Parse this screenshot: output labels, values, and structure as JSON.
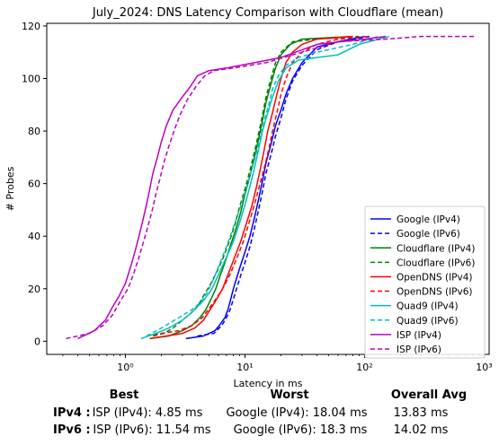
{
  "chart_data": {
    "type": "line",
    "title": "July_2024: DNS Latency Comparison with Cloudflare (mean)",
    "xlabel": "Latency in ms",
    "ylabel": "# Probes",
    "xscale": "log",
    "xlim": [
      0.22,
      1100
    ],
    "ylim": [
      -5,
      121
    ],
    "xticks": [
      1,
      10,
      100,
      1000
    ],
    "xtick_labels": [
      "10⁰",
      "10¹",
      "10²",
      "10³"
    ],
    "yticks": [
      0,
      20,
      40,
      60,
      80,
      100,
      120
    ],
    "grid": false,
    "legend_position": "lower-right",
    "series": [
      {
        "name": "Google (IPv4)",
        "color": "#0000ff",
        "dash": "solid",
        "points": [
          [
            3.2,
            1
          ],
          [
            4.5,
            2
          ],
          [
            5.6,
            4
          ],
          [
            6.1,
            6
          ],
          [
            6.8,
            9
          ],
          [
            7.2,
            12
          ],
          [
            7.6,
            16
          ],
          [
            8.0,
            20
          ],
          [
            8.5,
            24
          ],
          [
            9.2,
            29
          ],
          [
            10,
            34
          ],
          [
            11,
            40
          ],
          [
            12,
            47
          ],
          [
            13,
            54
          ],
          [
            14,
            61
          ],
          [
            15,
            68
          ],
          [
            16.5,
            75
          ],
          [
            18,
            82
          ],
          [
            20,
            88
          ],
          [
            22,
            94
          ],
          [
            25,
            100
          ],
          [
            30,
            106
          ],
          [
            40,
            112
          ],
          [
            60,
            114
          ],
          [
            100,
            116
          ]
        ]
      },
      {
        "name": "Google (IPv6)",
        "color": "#0000ff",
        "dash": "dashed",
        "points": [
          [
            4.0,
            2
          ],
          [
            5.5,
            3
          ],
          [
            6.4,
            6
          ],
          [
            7.0,
            9
          ],
          [
            7.5,
            12
          ],
          [
            8.0,
            16
          ],
          [
            8.5,
            20
          ],
          [
            9.2,
            25
          ],
          [
            10,
            30
          ],
          [
            11,
            36
          ],
          [
            12,
            43
          ],
          [
            13,
            50
          ],
          [
            14,
            57
          ],
          [
            15,
            64
          ],
          [
            16.5,
            71
          ],
          [
            18,
            78
          ],
          [
            20,
            85
          ],
          [
            22,
            92
          ],
          [
            25,
            99
          ],
          [
            30,
            105
          ],
          [
            40,
            111
          ],
          [
            60,
            114
          ],
          [
            110,
            116
          ]
        ]
      },
      {
        "name": "Cloudflare (IPv4)",
        "color": "#008000",
        "dash": "solid",
        "points": [
          [
            1.6,
            1
          ],
          [
            2.3,
            2
          ],
          [
            3.0,
            4
          ],
          [
            3.6,
            6
          ],
          [
            4.2,
            9
          ],
          [
            4.7,
            12
          ],
          [
            5.2,
            16
          ],
          [
            5.7,
            20
          ],
          [
            6.2,
            25
          ],
          [
            6.8,
            30
          ],
          [
            7.5,
            36
          ],
          [
            8.3,
            42
          ],
          [
            9.2,
            49
          ],
          [
            10,
            56
          ],
          [
            11,
            63
          ],
          [
            12,
            70
          ],
          [
            13,
            77
          ],
          [
            14,
            84
          ],
          [
            15,
            91
          ],
          [
            16.5,
            98
          ],
          [
            18,
            104
          ],
          [
            20,
            109
          ],
          [
            24,
            113
          ],
          [
            30,
            115
          ],
          [
            80,
            116
          ]
        ]
      },
      {
        "name": "Cloudflare (IPv6)",
        "color": "#008000",
        "dash": "dashed",
        "points": [
          [
            1.7,
            2
          ],
          [
            2.1,
            3
          ],
          [
            2.5,
            5
          ],
          [
            3.0,
            8
          ],
          [
            3.6,
            11
          ],
          [
            4.1,
            14
          ],
          [
            4.6,
            18
          ],
          [
            5.2,
            22
          ],
          [
            5.9,
            27
          ],
          [
            6.6,
            32
          ],
          [
            7.4,
            38
          ],
          [
            8.2,
            44
          ],
          [
            9.0,
            51
          ],
          [
            10,
            58
          ],
          [
            11,
            65
          ],
          [
            12,
            72
          ],
          [
            13,
            79
          ],
          [
            14,
            86
          ],
          [
            15,
            93
          ],
          [
            16.5,
            100
          ],
          [
            18,
            106
          ],
          [
            20,
            110
          ],
          [
            25,
            114
          ],
          [
            40,
            115
          ],
          [
            90,
            116
          ]
        ]
      },
      {
        "name": "OpenDNS (IPv4)",
        "color": "#ff0000",
        "dash": "solid",
        "points": [
          [
            1.6,
            1
          ],
          [
            2.2,
            2
          ],
          [
            3.0,
            3
          ],
          [
            3.8,
            5
          ],
          [
            4.5,
            8
          ],
          [
            5.1,
            12
          ],
          [
            5.8,
            16
          ],
          [
            6.5,
            20
          ],
          [
            7.3,
            26
          ],
          [
            8.2,
            32
          ],
          [
            9.2,
            38
          ],
          [
            10.3,
            45
          ],
          [
            11.5,
            52
          ],
          [
            12.5,
            59
          ],
          [
            13.5,
            66
          ],
          [
            14.5,
            73
          ],
          [
            15.5,
            80
          ],
          [
            17,
            87
          ],
          [
            18.5,
            94
          ],
          [
            20,
            100
          ],
          [
            22,
            106
          ],
          [
            25,
            110
          ],
          [
            30,
            113
          ],
          [
            40,
            115
          ],
          [
            80,
            116
          ]
        ]
      },
      {
        "name": "OpenDNS (IPv6)",
        "color": "#ff0000",
        "dash": "dashed",
        "points": [
          [
            1.5,
            2
          ],
          [
            2.0,
            3
          ],
          [
            2.8,
            4
          ],
          [
            3.6,
            6
          ],
          [
            4.4,
            9
          ],
          [
            5.1,
            13
          ],
          [
            5.9,
            17
          ],
          [
            6.7,
            21
          ],
          [
            7.6,
            26
          ],
          [
            8.6,
            32
          ],
          [
            9.7,
            38
          ],
          [
            10.8,
            45
          ],
          [
            12,
            52
          ],
          [
            13.2,
            59
          ],
          [
            14.5,
            66
          ],
          [
            15.8,
            73
          ],
          [
            17,
            80
          ],
          [
            18.5,
            87
          ],
          [
            20,
            94
          ],
          [
            22,
            100
          ],
          [
            25,
            106
          ],
          [
            30,
            110
          ],
          [
            40,
            113
          ],
          [
            60,
            115
          ],
          [
            110,
            116
          ]
        ]
      },
      {
        "name": "Quad9 (IPv4)",
        "color": "#00bfbf",
        "dash": "solid",
        "points": [
          [
            1.35,
            1
          ],
          [
            1.8,
            3
          ],
          [
            2.3,
            5
          ],
          [
            3.0,
            8
          ],
          [
            3.8,
            12
          ],
          [
            4.6,
            16
          ],
          [
            5.3,
            20
          ],
          [
            6.1,
            26
          ],
          [
            7.0,
            32
          ],
          [
            8.0,
            38
          ],
          [
            9.0,
            45
          ],
          [
            10,
            52
          ],
          [
            11,
            59
          ],
          [
            12,
            66
          ],
          [
            13,
            73
          ],
          [
            14,
            80
          ],
          [
            15.5,
            87
          ],
          [
            17,
            93
          ],
          [
            19,
            99
          ],
          [
            22,
            104
          ],
          [
            28,
            107
          ],
          [
            40,
            108
          ],
          [
            60,
            109
          ],
          [
            90,
            113
          ],
          [
            160,
            116
          ]
        ]
      },
      {
        "name": "Quad9 (IPv6)",
        "color": "#00bfbf",
        "dash": "dashed",
        "points": [
          [
            1.5,
            2
          ],
          [
            2.0,
            5
          ],
          [
            2.8,
            9
          ],
          [
            3.6,
            12
          ],
          [
            4.3,
            15
          ],
          [
            4.9,
            19
          ],
          [
            5.5,
            24
          ],
          [
            6.2,
            30
          ],
          [
            7.0,
            36
          ],
          [
            7.8,
            42
          ],
          [
            8.7,
            48
          ],
          [
            9.6,
            54
          ],
          [
            10.5,
            60
          ],
          [
            11.5,
            66
          ],
          [
            12.5,
            72
          ],
          [
            13.5,
            78
          ],
          [
            14.5,
            84
          ],
          [
            15.8,
            90
          ],
          [
            17,
            96
          ],
          [
            19,
            101
          ],
          [
            22,
            105
          ],
          [
            28,
            108
          ],
          [
            40,
            110
          ],
          [
            80,
            113
          ],
          [
            130,
            116
          ]
        ]
      },
      {
        "name": "ISP (IPv4)",
        "color": "#bf00bf",
        "dash": "solid",
        "points": [
          [
            0.4,
            1
          ],
          [
            0.55,
            4
          ],
          [
            0.68,
            8
          ],
          [
            0.78,
            13
          ],
          [
            0.88,
            17
          ],
          [
            1.0,
            22
          ],
          [
            1.1,
            28
          ],
          [
            1.2,
            34
          ],
          [
            1.3,
            40
          ],
          [
            1.4,
            46
          ],
          [
            1.5,
            52
          ],
          [
            1.6,
            58
          ],
          [
            1.7,
            64
          ],
          [
            1.85,
            70
          ],
          [
            2.0,
            76
          ],
          [
            2.2,
            82
          ],
          [
            2.5,
            88
          ],
          [
            3.0,
            93
          ],
          [
            3.5,
            97
          ],
          [
            4.0,
            101
          ],
          [
            5.0,
            103
          ],
          [
            7.0,
            104
          ],
          [
            12,
            106
          ],
          [
            20,
            108
          ],
          [
            40,
            113
          ],
          [
            100,
            115
          ],
          [
            150,
            116
          ]
        ]
      },
      {
        "name": "ISP (IPv6)",
        "color": "#bf00bf",
        "dash": "dashed",
        "points": [
          [
            0.32,
            1
          ],
          [
            0.5,
            3
          ],
          [
            0.65,
            6
          ],
          [
            0.78,
            10
          ],
          [
            0.9,
            15
          ],
          [
            1.05,
            20
          ],
          [
            1.18,
            26
          ],
          [
            1.3,
            32
          ],
          [
            1.42,
            38
          ],
          [
            1.55,
            44
          ],
          [
            1.68,
            50
          ],
          [
            1.8,
            56
          ],
          [
            1.95,
            62
          ],
          [
            2.1,
            68
          ],
          [
            2.3,
            74
          ],
          [
            2.55,
            80
          ],
          [
            2.85,
            86
          ],
          [
            3.3,
            92
          ],
          [
            3.9,
            97
          ],
          [
            4.6,
            101
          ],
          [
            5.5,
            103
          ],
          [
            8,
            104
          ],
          [
            15,
            106
          ],
          [
            30,
            110
          ],
          [
            60,
            114
          ],
          [
            150,
            115
          ],
          [
            300,
            116
          ],
          [
            850,
            116
          ]
        ]
      }
    ]
  },
  "summary": {
    "headers": {
      "best": "Best",
      "worst": "Worst",
      "avg": "Overall Avg"
    },
    "rows": [
      {
        "label": "IPv4 :",
        "best": "ISP (IPv4): 4.85 ms",
        "worst": "Google (IPv4): 18.04 ms",
        "avg": "13.83 ms"
      },
      {
        "label": "IPv6 :",
        "best": "ISP (IPv6): 11.54 ms",
        "worst": "Google (IPv6): 18.3 ms",
        "avg": "14.02 ms"
      }
    ]
  }
}
